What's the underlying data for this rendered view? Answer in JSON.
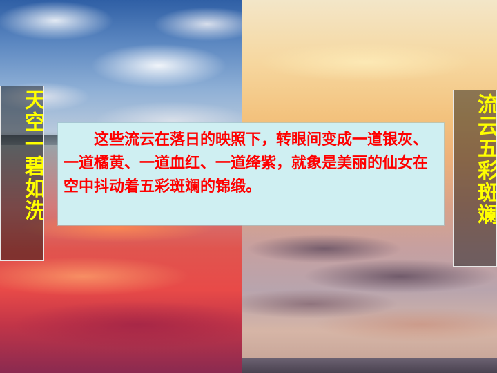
{
  "slide": {
    "left_title": "天空一碧如洗",
    "right_title": "流云五彩斑斓",
    "body_text": "这些流云在落日的映照下，转眼间变成一道银灰、一道橘黄、一道血红、一道绛紫，就象是美丽的仙女在空中抖动着五彩斑斓的锦缎。",
    "colors": {
      "title_color": "#ffff00",
      "body_text_color": "#ff0000",
      "textbox_background": "#cfeff2"
    }
  }
}
